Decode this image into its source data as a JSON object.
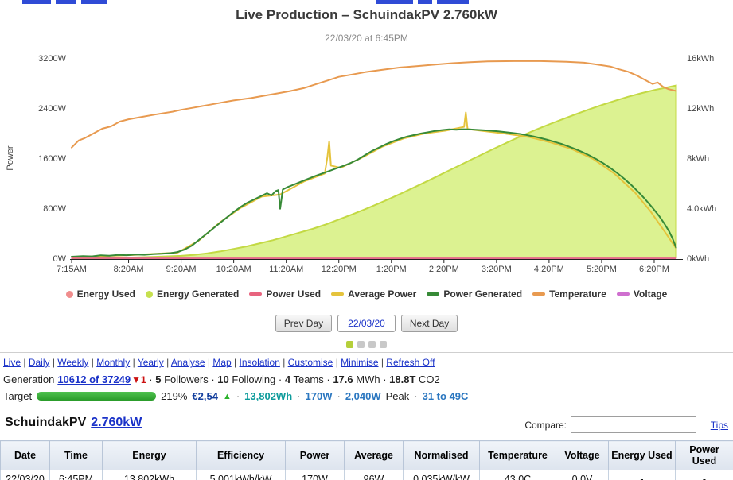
{
  "title": "Live Production – SchuindakPV 2.760kW",
  "subtitle": "22/03/20 at 6:45PM",
  "colors": {
    "link_blue": "#1a32c8",
    "rank_delta_red": "#cc1111",
    "trend_green": "#2db32d",
    "energy_teal": "#0d9b9b",
    "power_blue": "#2b77c0",
    "target_bar_green": "#2a9b2a"
  },
  "chart_data": {
    "type": "line",
    "title": "Live Production – SchuindakPV 2.760kW",
    "x_axis": {
      "min": 435,
      "max": 1130,
      "ticks": [
        {
          "label": "7:15AM",
          "t": 435
        },
        {
          "label": "8:20AM",
          "t": 500
        },
        {
          "label": "9:20AM",
          "t": 560
        },
        {
          "label": "10:20AM",
          "t": 620
        },
        {
          "label": "11:20AM",
          "t": 680
        },
        {
          "label": "12:20PM",
          "t": 740
        },
        {
          "label": "1:20PM",
          "t": 800
        },
        {
          "label": "2:20PM",
          "t": 860
        },
        {
          "label": "3:20PM",
          "t": 920
        },
        {
          "label": "4:20PM",
          "t": 980
        },
        {
          "label": "5:20PM",
          "t": 1040
        },
        {
          "label": "6:20PM",
          "t": 1100
        }
      ]
    },
    "y_left": {
      "label": "Power",
      "min": 0,
      "max": 3200,
      "ticks": [
        {
          "label": "0W",
          "v": 0
        },
        {
          "label": "800W",
          "v": 800
        },
        {
          "label": "1600W",
          "v": 1600
        },
        {
          "label": "2400W",
          "v": 2400
        },
        {
          "label": "3200W",
          "v": 3200
        }
      ]
    },
    "y_right": {
      "label": "",
      "min": 0,
      "max": 16,
      "ticks": [
        {
          "label": "0kWh",
          "v": 0
        },
        {
          "label": "4.0kWh",
          "v": 4
        },
        {
          "label": "8kWh",
          "v": 8
        },
        {
          "label": "12kWh",
          "v": 12
        },
        {
          "label": "16kWh",
          "v": 16
        }
      ]
    },
    "temp_axis": {
      "min": 7.5,
      "max": 50
    },
    "legend": [
      {
        "label": "Energy Used",
        "color": "#f08d8d",
        "shape": "circle"
      },
      {
        "label": "Energy Generated",
        "color": "#c6e04e",
        "shape": "circle"
      },
      {
        "label": "Power Used",
        "color": "#e8647f",
        "shape": "line"
      },
      {
        "label": "Average Power",
        "color": "#e5c33c",
        "shape": "line"
      },
      {
        "label": "Power Generated",
        "color": "#378a37",
        "shape": "line"
      },
      {
        "label": "Temperature",
        "color": "#e89a50",
        "shape": "line"
      },
      {
        "label": "Voltage",
        "color": "#cf6fcf",
        "shape": "line"
      }
    ],
    "series": [
      {
        "id": "energy-used",
        "name": "Energy Used",
        "type": "area",
        "axis": "right",
        "color": "#f08d8d",
        "fill": "rgba(240,141,141,0.35)",
        "points": [
          [
            435,
            0
          ],
          [
            1125,
            0
          ]
        ]
      },
      {
        "id": "energy-generated",
        "name": "Energy Generated",
        "type": "area",
        "axis": "right",
        "color": "#c3d944",
        "fill": "#dcf291",
        "points": [
          [
            435,
            0
          ],
          [
            470,
            0.02
          ],
          [
            500,
            0.06
          ],
          [
            530,
            0.12
          ],
          [
            560,
            0.2
          ],
          [
            575,
            0.28
          ],
          [
            590,
            0.4
          ],
          [
            605,
            0.55
          ],
          [
            620,
            0.75
          ],
          [
            635,
            0.95
          ],
          [
            650,
            1.2
          ],
          [
            665,
            1.45
          ],
          [
            680,
            1.75
          ],
          [
            695,
            2.05
          ],
          [
            710,
            2.35
          ],
          [
            725,
            2.7
          ],
          [
            740,
            3.1
          ],
          [
            755,
            3.5
          ],
          [
            770,
            3.92
          ],
          [
            785,
            4.36
          ],
          [
            800,
            4.82
          ],
          [
            815,
            5.3
          ],
          [
            830,
            5.8
          ],
          [
            845,
            6.3
          ],
          [
            860,
            6.82
          ],
          [
            875,
            7.33
          ],
          [
            890,
            7.84
          ],
          [
            905,
            8.35
          ],
          [
            920,
            8.85
          ],
          [
            935,
            9.34
          ],
          [
            950,
            9.82
          ],
          [
            965,
            10.27
          ],
          [
            980,
            10.7
          ],
          [
            995,
            11.1
          ],
          [
            1010,
            11.5
          ],
          [
            1025,
            11.88
          ],
          [
            1040,
            12.24
          ],
          [
            1055,
            12.58
          ],
          [
            1070,
            12.9
          ],
          [
            1085,
            13.18
          ],
          [
            1100,
            13.44
          ],
          [
            1110,
            13.58
          ],
          [
            1118,
            13.7
          ],
          [
            1125,
            13.8
          ]
        ]
      },
      {
        "id": "temperature",
        "name": "Temperature",
        "type": "line",
        "axis": "temp",
        "color": "#e89a50",
        "width": 2,
        "points": [
          [
            435,
            31
          ],
          [
            443,
            32.5
          ],
          [
            450,
            33
          ],
          [
            460,
            34
          ],
          [
            470,
            35
          ],
          [
            480,
            35.5
          ],
          [
            490,
            36.5
          ],
          [
            500,
            37
          ],
          [
            515,
            37.5
          ],
          [
            530,
            38
          ],
          [
            550,
            38.6
          ],
          [
            560,
            39
          ],
          [
            575,
            39.5
          ],
          [
            590,
            40
          ],
          [
            605,
            40.5
          ],
          [
            620,
            41
          ],
          [
            640,
            41.5
          ],
          [
            655,
            42
          ],
          [
            670,
            42.5
          ],
          [
            685,
            43
          ],
          [
            700,
            43.6
          ],
          [
            715,
            44.5
          ],
          [
            730,
            45.4
          ],
          [
            740,
            46
          ],
          [
            755,
            46.5
          ],
          [
            770,
            47
          ],
          [
            790,
            47.5
          ],
          [
            810,
            48
          ],
          [
            830,
            48.3
          ],
          [
            850,
            48.6
          ],
          [
            870,
            48.9
          ],
          [
            890,
            49.1
          ],
          [
            910,
            49.3
          ],
          [
            940,
            49.35
          ],
          [
            970,
            49.35
          ],
          [
            1000,
            49.2
          ],
          [
            1020,
            49
          ],
          [
            1035,
            48.6
          ],
          [
            1050,
            48.2
          ],
          [
            1060,
            47.6
          ],
          [
            1070,
            47.1
          ],
          [
            1080,
            46.3
          ],
          [
            1090,
            45.3
          ],
          [
            1098,
            44.5
          ],
          [
            1104,
            44.8
          ],
          [
            1110,
            43.9
          ],
          [
            1116,
            43.4
          ],
          [
            1125,
            43
          ]
        ]
      },
      {
        "id": "average-power",
        "name": "Average Power",
        "type": "line",
        "axis": "left",
        "color": "#e5c33c",
        "width": 2,
        "points": [
          [
            435,
            20
          ],
          [
            500,
            50
          ],
          [
            556,
            90
          ],
          [
            580,
            280
          ],
          [
            604,
            570
          ],
          [
            628,
            805
          ],
          [
            652,
            985
          ],
          [
            673,
            1020
          ],
          [
            700,
            1225
          ],
          [
            724,
            1355
          ],
          [
            727,
            1620
          ],
          [
            729,
            1870
          ],
          [
            731,
            1480
          ],
          [
            742,
            1445
          ],
          [
            766,
            1605
          ],
          [
            790,
            1785
          ],
          [
            814,
            1915
          ],
          [
            838,
            1995
          ],
          [
            862,
            2040
          ],
          [
            883,
            2100
          ],
          [
            885,
            2330
          ],
          [
            887,
            2065
          ],
          [
            910,
            2025
          ],
          [
            934,
            1985
          ],
          [
            958,
            1935
          ],
          [
            982,
            1850
          ],
          [
            1006,
            1745
          ],
          [
            1030,
            1590
          ],
          [
            1054,
            1360
          ],
          [
            1078,
            1050
          ],
          [
            1096,
            745
          ],
          [
            1113,
            405
          ],
          [
            1121,
            240
          ],
          [
            1125,
            160
          ]
        ]
      },
      {
        "id": "voltage",
        "name": "Voltage",
        "type": "line",
        "axis": "left",
        "color": "#cf6fcf",
        "width": 1.5,
        "points": [
          [
            435,
            0
          ],
          [
            1125,
            0
          ]
        ]
      },
      {
        "id": "power-used",
        "name": "Power Used",
        "type": "line",
        "axis": "left",
        "color": "#e8647f",
        "width": 1.5,
        "points": [
          [
            435,
            0
          ],
          [
            1125,
            0
          ]
        ]
      },
      {
        "id": "power-generated",
        "name": "Power Generated",
        "type": "line",
        "axis": "left",
        "color": "#378a37",
        "width": 2,
        "points": [
          [
            435,
            25
          ],
          [
            448,
            35
          ],
          [
            458,
            30
          ],
          [
            468,
            48
          ],
          [
            478,
            42
          ],
          [
            488,
            55
          ],
          [
            498,
            50
          ],
          [
            508,
            60
          ],
          [
            518,
            56
          ],
          [
            528,
            66
          ],
          [
            538,
            72
          ],
          [
            548,
            82
          ],
          [
            556,
            100
          ],
          [
            564,
            140
          ],
          [
            572,
            200
          ],
          [
            580,
            290
          ],
          [
            588,
            380
          ],
          [
            596,
            470
          ],
          [
            604,
            560
          ],
          [
            612,
            650
          ],
          [
            620,
            740
          ],
          [
            628,
            820
          ],
          [
            636,
            890
          ],
          [
            644,
            945
          ],
          [
            652,
            1000
          ],
          [
            658,
            1040
          ],
          [
            663,
            1005
          ],
          [
            668,
            1075
          ],
          [
            671,
            1090
          ],
          [
            673,
            790
          ],
          [
            676,
            1100
          ],
          [
            682,
            1140
          ],
          [
            690,
            1185
          ],
          [
            698,
            1230
          ],
          [
            706,
            1275
          ],
          [
            714,
            1320
          ],
          [
            722,
            1360
          ],
          [
            730,
            1400
          ],
          [
            738,
            1440
          ],
          [
            746,
            1480
          ],
          [
            754,
            1525
          ],
          [
            762,
            1580
          ],
          [
            770,
            1650
          ],
          [
            778,
            1715
          ],
          [
            786,
            1770
          ],
          [
            794,
            1825
          ],
          [
            802,
            1870
          ],
          [
            810,
            1910
          ],
          [
            818,
            1945
          ],
          [
            826,
            1970
          ],
          [
            834,
            1995
          ],
          [
            842,
            2015
          ],
          [
            850,
            2035
          ],
          [
            858,
            2050
          ],
          [
            866,
            2060
          ],
          [
            874,
            2055
          ],
          [
            882,
            2062
          ],
          [
            890,
            2058
          ],
          [
            898,
            2052
          ],
          [
            906,
            2046
          ],
          [
            914,
            2038
          ],
          [
            922,
            2028
          ],
          [
            930,
            2015
          ],
          [
            938,
            2003
          ],
          [
            946,
            1988
          ],
          [
            954,
            1970
          ],
          [
            962,
            1948
          ],
          [
            970,
            1922
          ],
          [
            978,
            1893
          ],
          [
            986,
            1862
          ],
          [
            994,
            1828
          ],
          [
            1002,
            1788
          ],
          [
            1010,
            1745
          ],
          [
            1018,
            1698
          ],
          [
            1026,
            1645
          ],
          [
            1034,
            1585
          ],
          [
            1042,
            1518
          ],
          [
            1050,
            1443
          ],
          [
            1058,
            1360
          ],
          [
            1066,
            1268
          ],
          [
            1074,
            1168
          ],
          [
            1082,
            1058
          ],
          [
            1090,
            938
          ],
          [
            1098,
            808
          ],
          [
            1106,
            668
          ],
          [
            1112,
            545
          ],
          [
            1117,
            430
          ],
          [
            1121,
            315
          ],
          [
            1125,
            170
          ]
        ]
      }
    ]
  },
  "day_nav": {
    "prev": "Prev Day",
    "date": "22/03/20",
    "next": "Next Day"
  },
  "pager": {
    "count": 4,
    "active_index": 0,
    "active_color": "#b5cf3a",
    "inactive_color": "#c8c8c8"
  },
  "view_nav": {
    "separator": "|",
    "links": [
      "Live",
      "Daily",
      "Weekly",
      "Monthly",
      "Yearly",
      "Analyse",
      "Map",
      "Insolation",
      "Customise",
      "Minimise",
      "Refresh Off"
    ]
  },
  "generation": {
    "label": "Generation",
    "rank_link": "10612 of 37249",
    "rank_delta": "▼1",
    "separator": "·",
    "stats": [
      {
        "value": "5",
        "unit": "Followers"
      },
      {
        "value": "10",
        "unit": "Following"
      },
      {
        "value": "4",
        "unit": "Teams"
      },
      {
        "value": "17.6",
        "unit": "MWh"
      },
      {
        "value": "18.8T",
        "unit": "CO2"
      }
    ]
  },
  "target": {
    "label": "Target",
    "percent": "219%",
    "currency": "€2,54",
    "trend": "▲",
    "energy": "13,802Wh",
    "power": "170W",
    "peak_value": "2,040W",
    "peak_label": "Peak",
    "temp_range": "31 to 49C",
    "separator": "·"
  },
  "system": {
    "name": "SchuindakPV",
    "size": "2.760kW",
    "compare_label": "Compare:",
    "tips": "Tips"
  },
  "table": {
    "headers": [
      "Date",
      "Time",
      "Energy",
      "Efficiency",
      "Power",
      "Average",
      "Normalised",
      "Temperature",
      "Voltage",
      "Energy Used",
      "Power Used"
    ],
    "rows": [
      [
        "22/03/20",
        "6:45PM",
        "13.802kWh",
        "5.001kWh/kW",
        "170W",
        "96W",
        "0.035kW/kW",
        "43.0C",
        "0.0V",
        "-",
        "-"
      ]
    ]
  }
}
